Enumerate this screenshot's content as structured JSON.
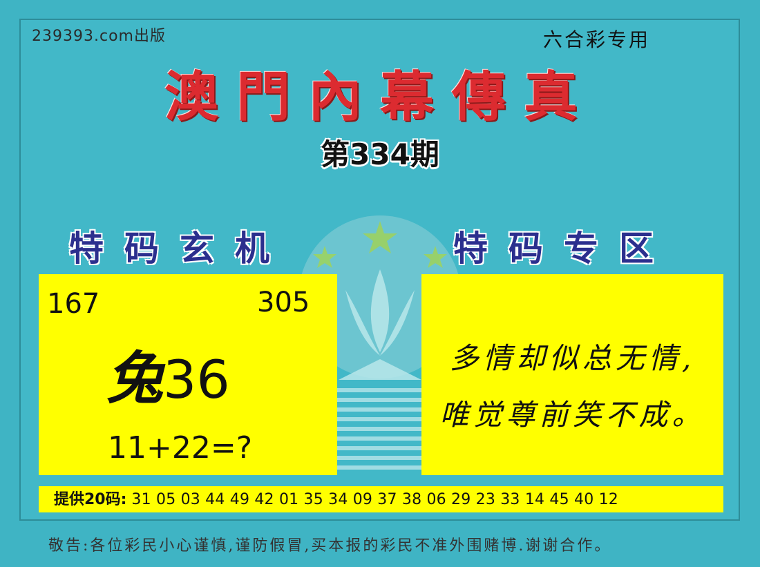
{
  "header": {
    "publisher": "239393.com出版",
    "special_use": "六合彩专用",
    "title": "澳門內幕傳真",
    "issue": "第334期"
  },
  "sections": {
    "left_title": "特码玄机",
    "right_title": "特码专区"
  },
  "left_box": {
    "number_a": "167",
    "number_b": "305",
    "zodiac": "兔",
    "zodiac_number": "36",
    "equation": "11+22=?"
  },
  "right_box": {
    "line1": "多情却似总无情,",
    "line2": "唯觉尊前笑不成。"
  },
  "codes": {
    "label": "提供20码:",
    "numbers": "31 05 03 44 49 42 01 35 34 09 37 38 06 29 23 33 14 45 40 12"
  },
  "footer": {
    "warning": "敬告:各位彩民小心谨慎,谨防假冒,买本报的彩民不准外围赌博.谢谢合作。"
  },
  "colors": {
    "background": "#3fb4c4",
    "title_red": "#dc2b30",
    "section_blue": "#2b2f8e",
    "box_yellow": "#ffff00"
  }
}
